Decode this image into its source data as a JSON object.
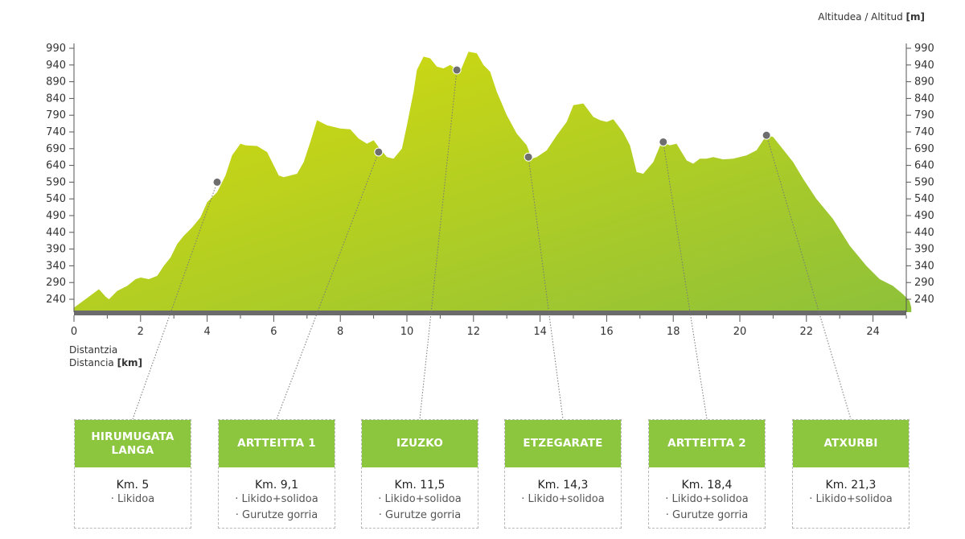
{
  "chart_data": {
    "type": "area",
    "ylabel": "Altitudea / Altitud [m]",
    "xlabel_line1": "Distantzia",
    "xlabel_line2_text": "Distancia ",
    "xlabel_unit": "[km]",
    "ylabel_text": "Altitudea / Altitud ",
    "ylabel_unit": "[m]",
    "xlim": [
      0,
      25
    ],
    "ylim": [
      215,
      1000
    ],
    "x_ticks": [
      0,
      2,
      4,
      6,
      8,
      10,
      12,
      14,
      16,
      18,
      20,
      22,
      24
    ],
    "y_ticks": [
      240,
      290,
      340,
      390,
      440,
      490,
      540,
      590,
      640,
      690,
      740,
      790,
      840,
      890,
      940,
      990
    ],
    "fill_colors": [
      "#d9dc0a",
      "#8ec13a"
    ],
    "baseline_color": "#6b6b6b",
    "profile": [
      [
        0.0,
        215
      ],
      [
        0.4,
        244
      ],
      [
        0.75,
        270
      ],
      [
        0.95,
        248
      ],
      [
        1.05,
        240
      ],
      [
        1.3,
        265
      ],
      [
        1.6,
        280
      ],
      [
        1.85,
        300
      ],
      [
        2.0,
        305
      ],
      [
        2.25,
        300
      ],
      [
        2.5,
        310
      ],
      [
        2.7,
        340
      ],
      [
        2.9,
        365
      ],
      [
        3.1,
        405
      ],
      [
        3.3,
        430
      ],
      [
        3.55,
        455
      ],
      [
        3.8,
        485
      ],
      [
        4.0,
        530
      ],
      [
        4.3,
        560
      ],
      [
        4.55,
        610
      ],
      [
        4.75,
        670
      ],
      [
        5.0,
        705
      ],
      [
        5.15,
        700
      ],
      [
        5.5,
        698
      ],
      [
        5.8,
        680
      ],
      [
        6.0,
        640
      ],
      [
        6.15,
        610
      ],
      [
        6.3,
        605
      ],
      [
        6.5,
        610
      ],
      [
        6.7,
        615
      ],
      [
        6.9,
        650
      ],
      [
        7.1,
        710
      ],
      [
        7.3,
        775
      ],
      [
        7.6,
        760
      ],
      [
        8.0,
        750
      ],
      [
        8.3,
        748
      ],
      [
        8.55,
        720
      ],
      [
        8.8,
        705
      ],
      [
        9.0,
        715
      ],
      [
        9.15,
        695
      ],
      [
        9.4,
        665
      ],
      [
        9.6,
        660
      ],
      [
        9.85,
        690
      ],
      [
        10.0,
        760
      ],
      [
        10.2,
        860
      ],
      [
        10.3,
        925
      ],
      [
        10.5,
        965
      ],
      [
        10.7,
        960
      ],
      [
        10.9,
        935
      ],
      [
        11.1,
        930
      ],
      [
        11.3,
        940
      ],
      [
        11.6,
        920
      ],
      [
        11.85,
        980
      ],
      [
        12.1,
        975
      ],
      [
        12.3,
        940
      ],
      [
        12.5,
        920
      ],
      [
        12.7,
        860
      ],
      [
        13.0,
        790
      ],
      [
        13.3,
        735
      ],
      [
        13.6,
        700
      ],
      [
        13.75,
        660
      ],
      [
        13.9,
        665
      ],
      [
        14.2,
        685
      ],
      [
        14.5,
        730
      ],
      [
        14.8,
        770
      ],
      [
        15.0,
        820
      ],
      [
        15.3,
        825
      ],
      [
        15.6,
        785
      ],
      [
        15.8,
        775
      ],
      [
        16.0,
        770
      ],
      [
        16.2,
        778
      ],
      [
        16.5,
        738
      ],
      [
        16.7,
        700
      ],
      [
        16.9,
        620
      ],
      [
        17.1,
        615
      ],
      [
        17.4,
        650
      ],
      [
        17.65,
        710
      ],
      [
        17.9,
        700
      ],
      [
        18.1,
        705
      ],
      [
        18.4,
        655
      ],
      [
        18.6,
        645
      ],
      [
        18.8,
        660
      ],
      [
        19.0,
        660
      ],
      [
        19.2,
        665
      ],
      [
        19.5,
        658
      ],
      [
        19.8,
        660
      ],
      [
        20.2,
        670
      ],
      [
        20.5,
        685
      ],
      [
        20.8,
        730
      ],
      [
        21.0,
        725
      ],
      [
        21.2,
        700
      ],
      [
        21.6,
        650
      ],
      [
        21.9,
        600
      ],
      [
        22.3,
        540
      ],
      [
        22.8,
        480
      ],
      [
        23.3,
        400
      ],
      [
        23.8,
        340
      ],
      [
        24.2,
        300
      ],
      [
        24.6,
        280
      ],
      [
        24.9,
        255
      ],
      [
        25.1,
        235
      ],
      [
        25.15,
        215
      ]
    ],
    "waypoints": [
      {
        "name": "HIRUMUGATA LANGA",
        "x": 4.3,
        "y": 590,
        "km": "Km. 5",
        "items": [
          "Likidoa"
        ]
      },
      {
        "name": "ARTTEITTA 1",
        "x": 9.15,
        "y": 680,
        "km": "Km. 9,1",
        "items": [
          "Likido+solidoa",
          "Gurutze gorria"
        ]
      },
      {
        "name": "IZUZKO",
        "x": 11.5,
        "y": 925,
        "km": "Km. 11,5",
        "items": [
          "Likido+solidoa",
          "Gurutze gorria"
        ]
      },
      {
        "name": "ETZEGARATE",
        "x": 13.65,
        "y": 665,
        "km": "Km. 14,3",
        "items": [
          "Likido+solidoa"
        ]
      },
      {
        "name": "ARTTEITTA 2",
        "x": 17.7,
        "y": 710,
        "km": "Km. 18,4",
        "items": [
          "Likido+solidoa",
          "Gurutze gorria"
        ]
      },
      {
        "name": "ATXURBI",
        "x": 20.8,
        "y": 730,
        "km": "Km. 21,3",
        "items": [
          "Likido+solidoa"
        ]
      }
    ]
  }
}
